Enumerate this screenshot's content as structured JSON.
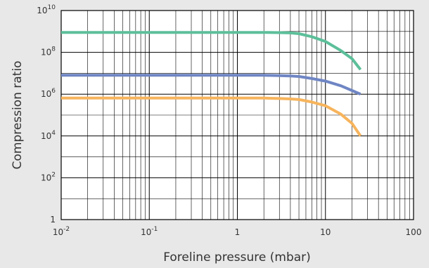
{
  "chart_data": {
    "type": "line",
    "xlabel": "Foreline pressure (mbar)",
    "ylabel": "Compression ratio",
    "xscale": "log",
    "yscale": "log",
    "xlim": [
      0.01,
      100
    ],
    "ylim": [
      1,
      10000000000
    ],
    "grid": true,
    "legend": "none",
    "x_ticks": [
      {
        "value": 0.01,
        "base": "10",
        "exp": "-2"
      },
      {
        "value": 0.1,
        "base": "10",
        "exp": "-1"
      },
      {
        "value": 1,
        "base": "1",
        "exp": ""
      },
      {
        "value": 10,
        "base": "10",
        "exp": ""
      },
      {
        "value": 100,
        "base": "100",
        "exp": ""
      }
    ],
    "y_ticks": [
      {
        "value": 1,
        "base": "1",
        "exp": ""
      },
      {
        "value": 100,
        "base": "10",
        "exp": "2"
      },
      {
        "value": 10000,
        "base": "10",
        "exp": "4"
      },
      {
        "value": 1000000,
        "base": "10",
        "exp": "6"
      },
      {
        "value": 100000000,
        "base": "10",
        "exp": "8"
      },
      {
        "value": 10000000000,
        "base": "10",
        "exp": "10"
      }
    ],
    "series": [
      {
        "color": "#5cbf9a",
        "x": [
          0.01,
          0.1,
          1,
          2,
          3,
          4,
          5,
          7,
          10,
          15,
          20,
          25
        ],
        "y": [
          900000000,
          900000000,
          900000000,
          900000000,
          880000000,
          850000000,
          780000000,
          560000000,
          330000000,
          120000000,
          50000000,
          15000000
        ]
      },
      {
        "color": "#6f86c4",
        "x": [
          0.01,
          0.1,
          1,
          2,
          3,
          4,
          5,
          7,
          10,
          15,
          20,
          25
        ],
        "y": [
          8000000,
          8000000,
          8000000,
          8000000,
          7700000,
          7400000,
          7000000,
          5600000,
          4200000,
          2500000,
          1500000,
          1000000
        ]
      },
      {
        "color": "#f7b45c",
        "x": [
          0.01,
          0.1,
          1,
          2,
          3,
          4,
          5,
          7,
          10,
          15,
          20,
          25
        ],
        "y": [
          650000,
          650000,
          650000,
          650000,
          620000,
          590000,
          550000,
          420000,
          280000,
          110000,
          40000,
          10000
        ]
      }
    ]
  }
}
